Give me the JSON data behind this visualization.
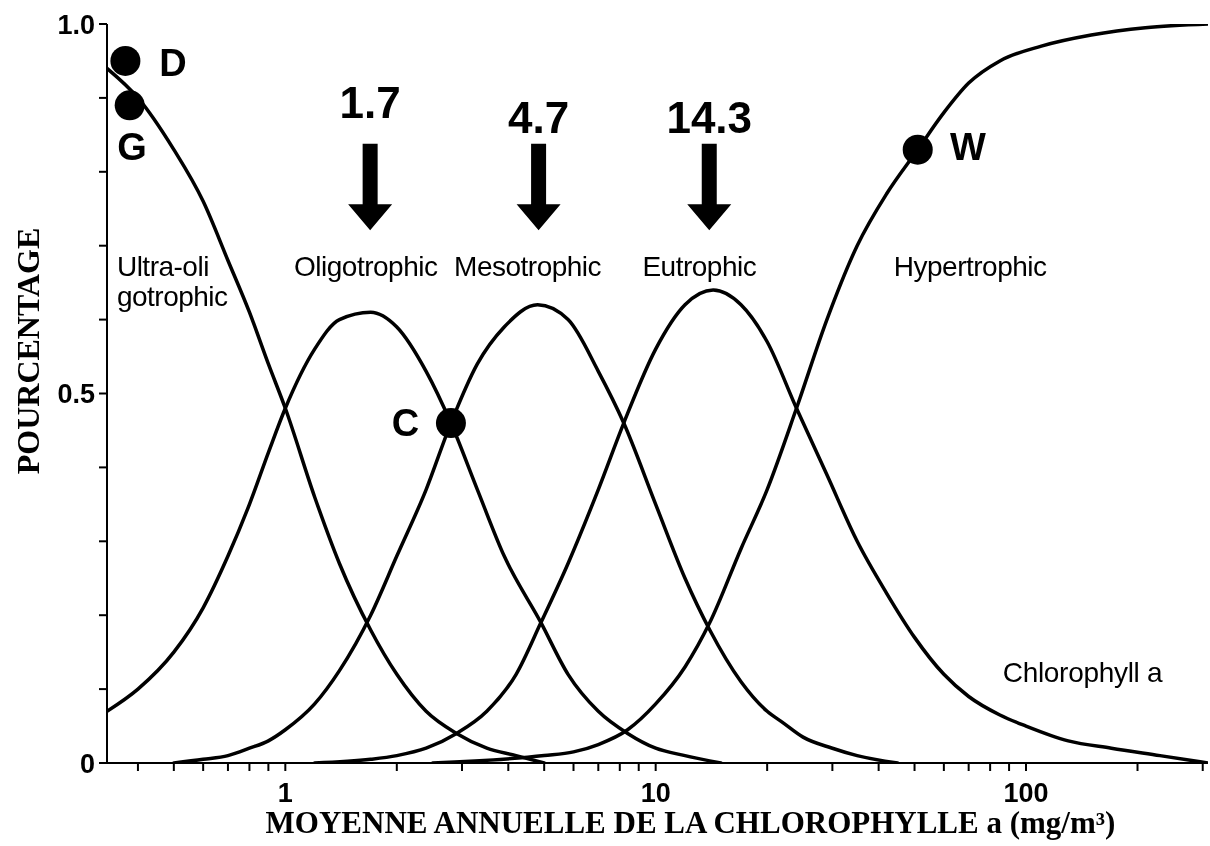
{
  "chart_data": {
    "type": "line",
    "xlabel": "MOYENNE ANNUELLE DE LA CHLOROPHYLLE a (mg/m³)",
    "ylabel": "POURCENTAGE",
    "log": "x",
    "xlim": [
      0.33,
      310
    ],
    "xticks": [
      {
        "value": 0.4,
        "label": null
      },
      {
        "value": 0.5,
        "label": null
      },
      {
        "value": 0.6,
        "label": null
      },
      {
        "value": 0.7,
        "label": null
      },
      {
        "value": 0.8,
        "label": null
      },
      {
        "value": 0.9,
        "label": null
      },
      1,
      {
        "value": 2,
        "label": null
      },
      {
        "value": 3,
        "label": null
      },
      {
        "value": 4,
        "label": null
      },
      {
        "value": 5,
        "label": null
      },
      {
        "value": 6,
        "label": null
      },
      {
        "value": 7,
        "label": null
      },
      {
        "value": 8,
        "label": null
      },
      {
        "value": 9,
        "label": null
      },
      10,
      {
        "value": 20,
        "label": null
      },
      {
        "value": 30,
        "label": null
      },
      {
        "value": 40,
        "label": null
      },
      {
        "value": 50,
        "label": null
      },
      {
        "value": 60,
        "label": null
      },
      {
        "value": 70,
        "label": null
      },
      {
        "value": 80,
        "label": null
      },
      {
        "value": 90,
        "label": null
      },
      100,
      {
        "value": 200,
        "label": null
      },
      {
        "value": 300,
        "label": null
      }
    ],
    "ylim": [
      0,
      1
    ],
    "yticks": [
      0,
      {
        "value": 0.1,
        "label": null
      },
      {
        "value": 0.2,
        "label": null
      },
      {
        "value": 0.3,
        "label": null
      },
      {
        "value": 0.4,
        "label": null
      },
      0.5,
      {
        "value": 0.6,
        "label": null
      },
      {
        "value": 0.7,
        "label": null
      },
      {
        "value": 0.8,
        "label": null
      },
      {
        "value": 0.9,
        "label": null
      },
      {
        "value": 1,
        "label": "1.0"
      }
    ],
    "marker": "none",
    "line_style": "solid",
    "series": [
      {
        "name": "Ultra-oli gotrophic",
        "color": "#000000",
        "x": [
          0.33,
          0.4,
          0.5,
          0.6,
          0.7,
          0.8,
          0.9,
          1.0,
          1.2,
          1.4,
          1.7,
          2.0,
          2.4,
          2.9,
          3.5,
          4.2,
          5
        ],
        "values": [
          0.94,
          0.9,
          0.83,
          0.76,
          0.68,
          0.61,
          0.54,
          0.48,
          0.36,
          0.27,
          0.18,
          0.12,
          0.07,
          0.04,
          0.02,
          0.01,
          0
        ]
      },
      {
        "name": "Oligotrophic",
        "color": "#000000",
        "x": [
          0.33,
          0.4,
          0.5,
          0.6,
          0.7,
          0.8,
          0.9,
          1.0,
          1.2,
          1.4,
          1.7,
          2.0,
          2.4,
          2.8,
          3.3,
          3.9,
          4.9,
          5.8,
          7,
          8.4,
          10,
          12,
          15
        ],
        "values": [
          0.07,
          0.1,
          0.15,
          0.21,
          0.28,
          0.35,
          0.42,
          0.48,
          0.56,
          0.6,
          0.61,
          0.59,
          0.53,
          0.46,
          0.37,
          0.28,
          0.19,
          0.12,
          0.07,
          0.04,
          0.02,
          0.01,
          0
        ]
      },
      {
        "name": "Mesotrophic",
        "color": "#000000",
        "x": [
          0.5,
          0.6,
          0.7,
          0.8,
          0.9,
          1.0,
          1.2,
          1.4,
          1.7,
          2.0,
          2.4,
          2.8,
          3.3,
          3.9,
          4.8,
          5.8,
          7,
          8.2,
          10,
          12,
          14,
          17,
          20,
          22,
          25,
          30,
          35,
          45
        ],
        "values": [
          0,
          0.005,
          0.01,
          0.02,
          0.03,
          0.045,
          0.08,
          0.125,
          0.2,
          0.28,
          0.37,
          0.46,
          0.54,
          0.59,
          0.62,
          0.6,
          0.53,
          0.46,
          0.35,
          0.25,
          0.18,
          0.11,
          0.07,
          0.055,
          0.035,
          0.02,
          0.01,
          0
        ]
      },
      {
        "name": "Eutrophic",
        "color": "#000000",
        "x": [
          1.2,
          1.7,
          2.0,
          2.4,
          2.9,
          3.5,
          4.2,
          4.9,
          5.8,
          7,
          8.2,
          10,
          12,
          14.3,
          17,
          20,
          24,
          29,
          35,
          42,
          50,
          60,
          70,
          85,
          100,
          130,
          170,
          230,
          310
        ],
        "values": [
          0,
          0.005,
          0.01,
          0.02,
          0.04,
          0.07,
          0.12,
          0.19,
          0.27,
          0.37,
          0.46,
          0.56,
          0.62,
          0.64,
          0.62,
          0.57,
          0.48,
          0.39,
          0.3,
          0.23,
          0.17,
          0.12,
          0.09,
          0.065,
          0.05,
          0.03,
          0.02,
          0.01,
          0
        ]
      },
      {
        "name": "Hypertrophic",
        "color": "#000000",
        "x": [
          2.5,
          5,
          6,
          7,
          8.4,
          10,
          12,
          14,
          17,
          20,
          24,
          29,
          35,
          42,
          51,
          60,
          70,
          85,
          110,
          150,
          210,
          310
        ],
        "values": [
          0,
          0.01,
          0.015,
          0.025,
          0.045,
          0.08,
          0.13,
          0.19,
          0.29,
          0.37,
          0.48,
          0.6,
          0.7,
          0.77,
          0.83,
          0.88,
          0.92,
          0.95,
          0.97,
          0.985,
          0.995,
          1
        ]
      },
      {
        "type": "scatter",
        "color": "#000000",
        "marker": "circle",
        "x": [
          0.37,
          0.38,
          2.8,
          51
        ],
        "values": [
          0.95,
          0.89,
          0.46,
          0.83
        ]
      }
    ],
    "annotations": [
      "1.7",
      "4.7",
      "14.3",
      "D",
      "G",
      "C",
      "W",
      "Chlorophyll a"
    ]
  }
}
